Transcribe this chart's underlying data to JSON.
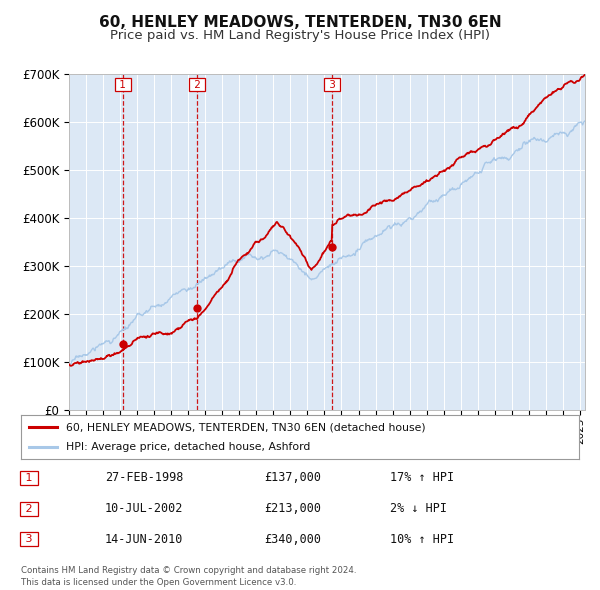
{
  "title": "60, HENLEY MEADOWS, TENTERDEN, TN30 6EN",
  "subtitle": "Price paid vs. HM Land Registry's House Price Index (HPI)",
  "title_fontsize": 11,
  "subtitle_fontsize": 9.5,
  "background_color": "#ffffff",
  "plot_bg_color": "#dce8f5",
  "grid_color": "#ffffff",
  "ylim": [
    0,
    700000
  ],
  "yticks": [
    0,
    100000,
    200000,
    300000,
    400000,
    500000,
    600000,
    700000
  ],
  "ytick_labels": [
    "£0",
    "£100K",
    "£200K",
    "£300K",
    "£400K",
    "£500K",
    "£600K",
    "£700K"
  ],
  "legend1_label": "60, HENLEY MEADOWS, TENTERDEN, TN30 6EN (detached house)",
  "legend2_label": "HPI: Average price, detached house, Ashford",
  "red_color": "#cc0000",
  "blue_color": "#a8c8e8",
  "transactions": [
    {
      "date": "1998-02-27",
      "price": 137000,
      "label": "1"
    },
    {
      "date": "2002-07-10",
      "price": 213000,
      "label": "2"
    },
    {
      "date": "2010-06-14",
      "price": 340000,
      "label": "3"
    }
  ],
  "table_rows": [
    {
      "num": "1",
      "date": "27-FEB-1998",
      "price": "£137,000",
      "pct": "17% ↑ HPI"
    },
    {
      "num": "2",
      "date": "10-JUL-2002",
      "price": "£213,000",
      "pct": "2% ↓ HPI"
    },
    {
      "num": "3",
      "date": "14-JUN-2010",
      "price": "£340,000",
      "pct": "10% ↑ HPI"
    }
  ],
  "footer": "Contains HM Land Registry data © Crown copyright and database right 2024.\nThis data is licensed under the Open Government Licence v3.0.",
  "xstart": 1995.0,
  "xend": 2025.3
}
